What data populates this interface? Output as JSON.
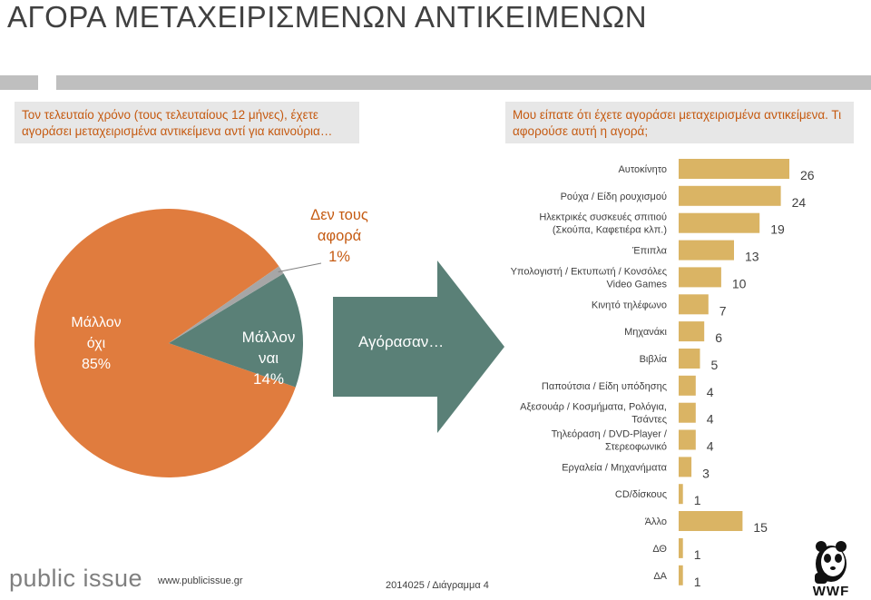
{
  "title": "ΑΓΟΡΑ ΜΕΤΑΧΕΙΡΙΣΜΕΝΩΝ ΑΝΤΙΚΕΙΜΕΝΩΝ",
  "question_left": "Τον τελευταίο χρόνο (τους τελευταίους 12 μήνες), έχετε αγοράσει μεταχειρισμένα αντικείμενα αντί για καινούρια…",
  "question_right": "Μου είπατε ότι έχετε αγοράσει μεταχειρισμένα αντικείμενα. Τι αφορούσε αυτή η αγορά;",
  "pie": {
    "slices": [
      {
        "label_line1": "Μάλλον",
        "label_line2": "όχι",
        "percent_label": "85%",
        "value": 85,
        "color": "#e07c3e"
      },
      {
        "label_line1": "Μάλλον",
        "label_line2": "ναι",
        "percent_label": "14%",
        "value": 14,
        "color": "#5a8077"
      },
      {
        "label_line1": "Δεν τους",
        "label_line2": "αφορά",
        "percent_label": "1%",
        "value": 1,
        "color": "#a6a6a6"
      }
    ]
  },
  "arrow_label": "Αγόρασαν…",
  "chart_data": {
    "type": "bar",
    "orientation": "horizontal",
    "title": "Μου είπατε ότι έχετε αγοράσει μεταχειρισμένα αντικείμενα. Τι αφορούσε αυτή η αγορά;",
    "categories": [
      [
        "Αυτοκίνητο"
      ],
      [
        "Ρούχα / Είδη ρουχισμού"
      ],
      [
        "Ηλεκτρικές συσκευές σπιτιού",
        "(Σκούπα, Καφετιέρα κλπ.)"
      ],
      [
        "Έπιπλα"
      ],
      [
        "Υπολογιστή / Εκτυπωτή / Κονσόλες",
        "Video Games"
      ],
      [
        "Κινητό τηλέφωνο"
      ],
      [
        "Μηχανάκι"
      ],
      [
        "Βιβλία"
      ],
      [
        "Παπούτσια / Είδη υπόδησης"
      ],
      [
        "Αξεσουάρ / Κοσμήματα, Ρολόγια,",
        "Τσάντες"
      ],
      [
        "Τηλεόραση / DVD-Player /",
        "Στερεοφωνικό"
      ],
      [
        "Εργαλεία / Μηχανήματα"
      ],
      [
        "CD/δίσκους"
      ],
      [
        "Άλλο"
      ],
      [
        "ΔΘ"
      ],
      [
        "ΔΑ"
      ]
    ],
    "values": [
      26,
      24,
      19,
      13,
      10,
      7,
      6,
      5,
      4,
      4,
      4,
      3,
      1,
      15,
      1,
      1
    ],
    "colors": {
      "bar": "#dab464",
      "label": "#404040"
    },
    "xlim": [
      0,
      26
    ]
  },
  "footer": {
    "brand": "public issue",
    "url": "www.publicissue.gr",
    "code": "2014025 / Διάγραμμα 4",
    "logo_text": "WWF"
  }
}
